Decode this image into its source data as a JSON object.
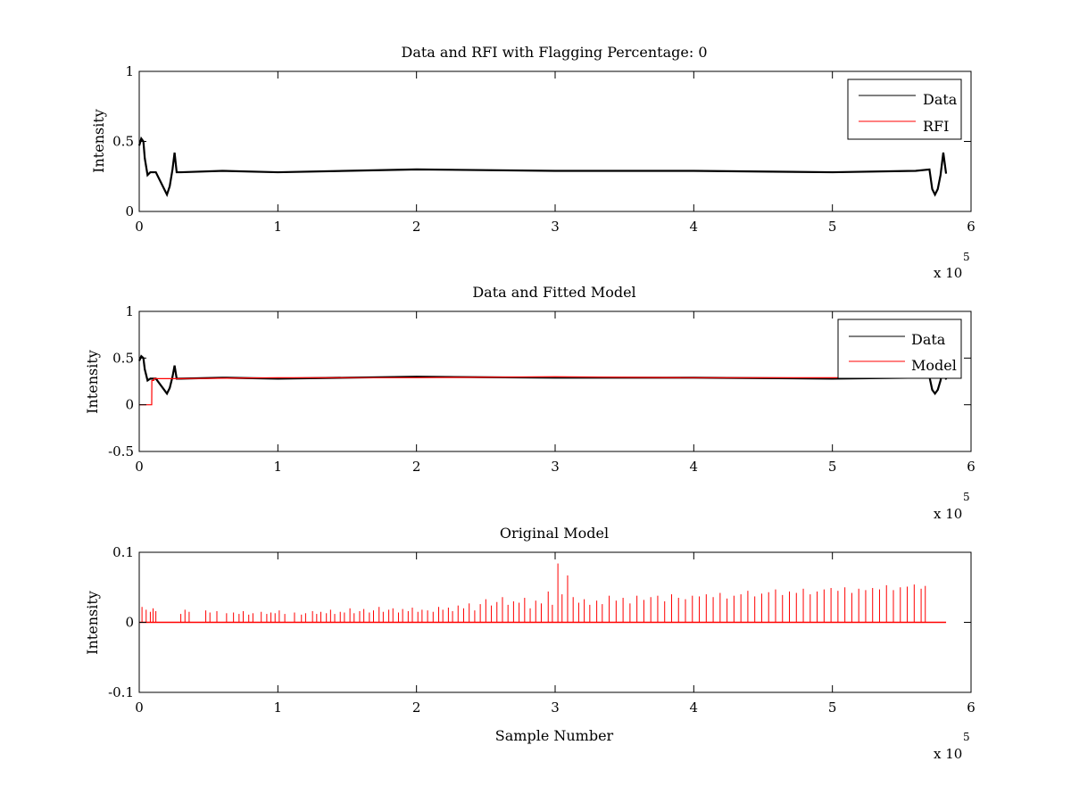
{
  "chart_data": [
    {
      "type": "line",
      "title": "Data and RFI with Flagging Percentage: 0",
      "xlabel": "",
      "ylabel": "Intensity",
      "xlim": [
        0,
        600000
      ],
      "ylim": [
        0,
        1
      ],
      "xticks": [
        0,
        1,
        2,
        3,
        4,
        5,
        6
      ],
      "yticks": [
        0,
        0.5,
        1
      ],
      "x_exponent_label": "x 10",
      "x_exponent": "5",
      "legend_position": "top-right",
      "series": [
        {
          "name": "Data",
          "color": "#000000",
          "x": [
            0,
            1500,
            3000,
            4000,
            6000,
            8000,
            12000,
            18000,
            20000,
            22000,
            24000,
            25500,
            27000,
            30000,
            60000,
            100000,
            200000,
            300000,
            400000,
            500000,
            560000,
            570000,
            572000,
            574000,
            576000,
            578000,
            580000,
            582000
          ],
          "y": [
            0.47,
            0.52,
            0.5,
            0.38,
            0.26,
            0.28,
            0.28,
            0.16,
            0.12,
            0.18,
            0.3,
            0.42,
            0.28,
            0.28,
            0.29,
            0.28,
            0.3,
            0.29,
            0.29,
            0.28,
            0.29,
            0.3,
            0.16,
            0.12,
            0.16,
            0.26,
            0.42,
            0.27
          ]
        },
        {
          "name": "RFI",
          "color": "#ff0000",
          "x": [],
          "y": []
        }
      ]
    },
    {
      "type": "line",
      "title": "Data and Fitted Model",
      "xlabel": "",
      "ylabel": "Intensity",
      "xlim": [
        0,
        600000
      ],
      "ylim": [
        -0.5,
        1
      ],
      "xticks": [
        0,
        1,
        2,
        3,
        4,
        5,
        6
      ],
      "yticks": [
        -0.5,
        0,
        0.5,
        1
      ],
      "x_exponent_label": "x 10",
      "x_exponent": "5",
      "legend_position": "top-right",
      "series": [
        {
          "name": "Data",
          "color": "#000000",
          "x": [
            0,
            1500,
            3000,
            4000,
            6000,
            8000,
            12000,
            18000,
            20000,
            22000,
            24000,
            25500,
            27000,
            30000,
            60000,
            100000,
            200000,
            300000,
            400000,
            500000,
            560000,
            570000,
            572000,
            574000,
            576000,
            578000,
            580000,
            582000
          ],
          "y": [
            0.47,
            0.52,
            0.5,
            0.38,
            0.26,
            0.28,
            0.28,
            0.16,
            0.12,
            0.18,
            0.3,
            0.42,
            0.28,
            0.28,
            0.29,
            0.28,
            0.3,
            0.29,
            0.29,
            0.28,
            0.29,
            0.3,
            0.16,
            0.12,
            0.16,
            0.26,
            0.42,
            0.27
          ]
        },
        {
          "name": "Model",
          "color": "#ff0000",
          "x": [
            0,
            9000,
            9100,
            10500,
            10600,
            30000,
            100000,
            200000,
            300000,
            400000,
            500000,
            520000
          ],
          "y": [
            0,
            0,
            0.26,
            0.26,
            0.28,
            0.28,
            0.29,
            0.29,
            0.3,
            0.29,
            0.29,
            0.29
          ]
        }
      ]
    },
    {
      "type": "line",
      "title": "Original Model",
      "xlabel": "Sample Number",
      "ylabel": "Intensity",
      "xlim": [
        0,
        600000
      ],
      "ylim": [
        -0.1,
        0.1
      ],
      "xticks": [
        0,
        1,
        2,
        3,
        4,
        5,
        6
      ],
      "yticks": [
        -0.1,
        0,
        0.1
      ],
      "x_exponent_label": "x 10",
      "x_exponent": "5",
      "legend_position": "none",
      "series": [
        {
          "name": "",
          "color": "#ff0000",
          "baseline": [
            0,
            582000
          ],
          "spikes_x": [
            2000,
            5000,
            8000,
            10000,
            12000,
            30000,
            33000,
            36000,
            48000,
            51000,
            56000,
            63000,
            68000,
            72000,
            75000,
            79000,
            82000,
            88000,
            92000,
            95000,
            98000,
            101000,
            105000,
            112000,
            117000,
            120000,
            125000,
            128000,
            131000,
            135000,
            138000,
            141000,
            145000,
            148000,
            152000,
            155000,
            159000,
            162000,
            166000,
            169000,
            173000,
            176000,
            180000,
            183000,
            187000,
            190000,
            194000,
            197000,
            201000,
            204000,
            208000,
            212000,
            216000,
            219000,
            223000,
            226000,
            230000,
            234000,
            238000,
            242000,
            246000,
            250000,
            254000,
            258000,
            262000,
            266000,
            270000,
            274000,
            278000,
            282000,
            286000,
            290000,
            295000,
            298000,
            302000,
            305000,
            309000,
            313000,
            317000,
            321000,
            325000,
            330000,
            334000,
            339000,
            344000,
            349000,
            354000,
            359000,
            364000,
            369000,
            374000,
            379000,
            384000,
            389000,
            394000,
            399000,
            404000,
            409000,
            414000,
            419000,
            424000,
            429000,
            434000,
            439000,
            444000,
            449000,
            454000,
            459000,
            464000,
            469000,
            474000,
            479000,
            484000,
            489000,
            494000,
            499000,
            504000,
            509000,
            514000,
            519000,
            524000,
            529000,
            534000,
            539000,
            544000,
            549000,
            554000,
            559000,
            564000,
            567000
          ],
          "spikes_y": [
            0.022,
            0.018,
            0.015,
            0.02,
            0.016,
            0.012,
            0.018,
            0.015,
            0.017,
            0.014,
            0.016,
            0.013,
            0.014,
            0.012,
            0.016,
            0.011,
            0.013,
            0.015,
            0.012,
            0.014,
            0.013,
            0.017,
            0.012,
            0.014,
            0.011,
            0.013,
            0.016,
            0.012,
            0.015,
            0.013,
            0.018,
            0.012,
            0.015,
            0.014,
            0.02,
            0.013,
            0.016,
            0.019,
            0.014,
            0.017,
            0.022,
            0.015,
            0.018,
            0.02,
            0.014,
            0.019,
            0.016,
            0.021,
            0.015,
            0.018,
            0.017,
            0.015,
            0.022,
            0.018,
            0.021,
            0.016,
            0.024,
            0.02,
            0.027,
            0.017,
            0.026,
            0.033,
            0.024,
            0.029,
            0.036,
            0.025,
            0.03,
            0.028,
            0.035,
            0.02,
            0.031,
            0.027,
            0.044,
            0.025,
            0.084,
            0.04,
            0.067,
            0.036,
            0.028,
            0.033,
            0.025,
            0.031,
            0.026,
            0.038,
            0.031,
            0.035,
            0.027,
            0.038,
            0.032,
            0.036,
            0.038,
            0.03,
            0.04,
            0.035,
            0.033,
            0.038,
            0.037,
            0.04,
            0.036,
            0.042,
            0.034,
            0.038,
            0.04,
            0.045,
            0.037,
            0.041,
            0.043,
            0.047,
            0.039,
            0.044,
            0.042,
            0.048,
            0.04,
            0.044,
            0.047,
            0.049,
            0.045,
            0.05,
            0.042,
            0.048,
            0.046,
            0.049,
            0.047,
            0.053,
            0.046,
            0.05,
            0.051,
            0.054,
            0.048,
            0.052
          ]
        }
      ]
    }
  ]
}
